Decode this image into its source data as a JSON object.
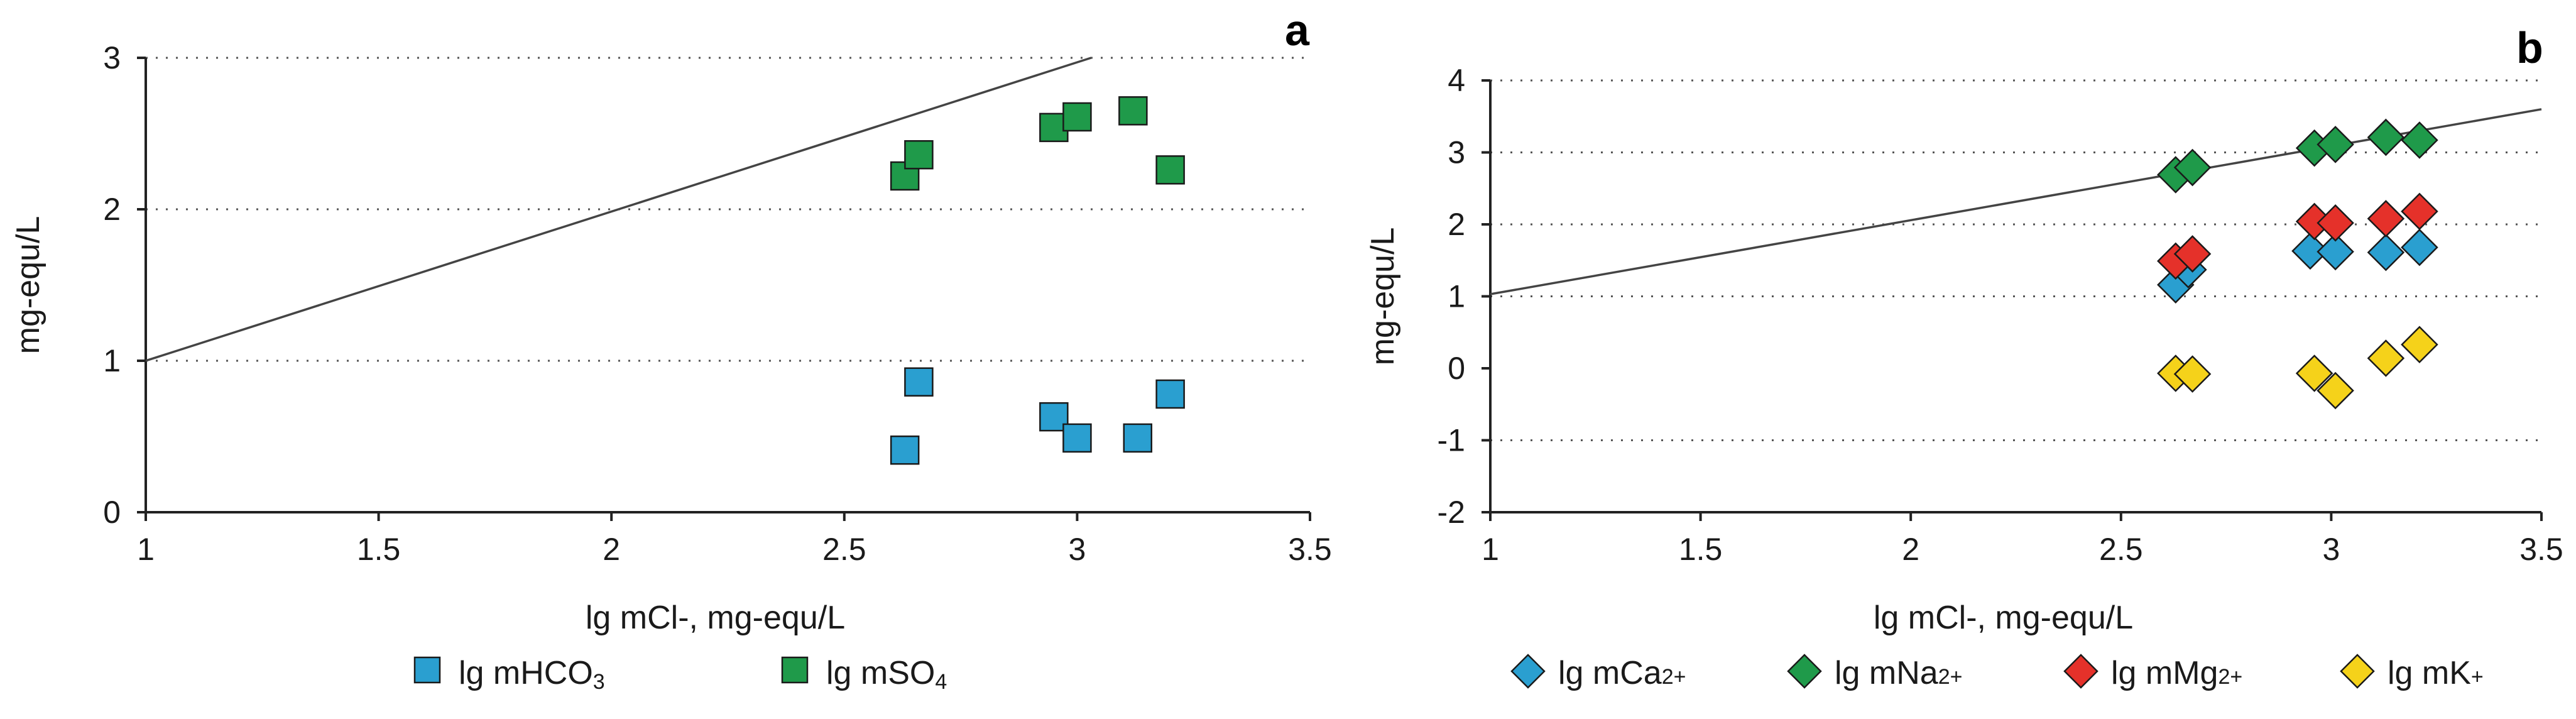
{
  "chart_data": [
    {
      "type": "scatter",
      "panel": "a",
      "xlabel": "lg mCl-, mg-equ/L",
      "ylabel": "mg-equ/L",
      "xlim": [
        1,
        3.5
      ],
      "ylim": [
        0,
        3
      ],
      "xticks": [
        1,
        1.5,
        2,
        2.5,
        3,
        3.5
      ],
      "yticks": [
        0,
        1,
        2,
        3
      ],
      "xtick_labels": [
        "1",
        "1.5",
        "2",
        "2.5",
        "3",
        "3.5"
      ],
      "ytick_labels": [
        "0",
        "1",
        "2",
        "3"
      ],
      "grid_y": [
        1,
        2,
        3
      ],
      "reference_line": {
        "x": [
          1,
          3.03
        ],
        "y": [
          1,
          3
        ]
      },
      "series": [
        {
          "name": "lg mHCO3",
          "label_base": "lg mHCO",
          "label_sub": "3",
          "marker": "square",
          "color": "#2a9fd0",
          "points": [
            [
              2.63,
              0.41
            ],
            [
              2.66,
              0.86
            ],
            [
              2.95,
              0.63
            ],
            [
              3.0,
              0.49
            ],
            [
              3.13,
              0.49
            ],
            [
              3.2,
              0.78
            ]
          ]
        },
        {
          "name": "lg mSO4",
          "label_base": "lg mSO",
          "label_sub": "4",
          "marker": "square",
          "color": "#1f9a4a",
          "points": [
            [
              2.63,
              2.22
            ],
            [
              2.66,
              2.36
            ],
            [
              2.95,
              2.54
            ],
            [
              3.0,
              2.61
            ],
            [
              3.12,
              2.65
            ],
            [
              3.2,
              2.26
            ]
          ]
        }
      ]
    },
    {
      "type": "scatter",
      "panel": "b",
      "xlabel": "lg mCl-, mg-equ/L",
      "ylabel": "mg-equ/L",
      "xlim": [
        1,
        3.5
      ],
      "ylim": [
        -2,
        4
      ],
      "xticks": [
        1,
        1.5,
        2,
        2.5,
        3,
        3.5
      ],
      "yticks": [
        -2,
        -1,
        0,
        1,
        2,
        3,
        4
      ],
      "xtick_labels": [
        "1",
        "1.5",
        "2",
        "2.5",
        "3",
        "3.5"
      ],
      "ytick_labels": [
        "-2",
        "-1",
        "0",
        "1",
        "2",
        "3",
        "4"
      ],
      "grid_y": [
        -1,
        1,
        2,
        3,
        4
      ],
      "reference_line": {
        "x": [
          1,
          3.5
        ],
        "y": [
          1.03,
          3.6
        ]
      },
      "series": [
        {
          "name": "lg mCa2+",
          "label_base": "lg mCa",
          "label_sup": "2+",
          "marker": "diamond",
          "color": "#2a9fd0",
          "points": [
            [
              2.63,
              1.16
            ],
            [
              2.66,
              1.37
            ],
            [
              2.95,
              1.63
            ],
            [
              3.01,
              1.62
            ],
            [
              3.13,
              1.61
            ],
            [
              3.21,
              1.68
            ]
          ]
        },
        {
          "name": "lg mNa2+",
          "label_base": "lg mNa",
          "label_sup": "2+",
          "marker": "diamond",
          "color": "#1f9a4a",
          "points": [
            [
              2.63,
              2.69
            ],
            [
              2.67,
              2.79
            ],
            [
              2.96,
              3.06
            ],
            [
              3.01,
              3.11
            ],
            [
              3.13,
              3.21
            ],
            [
              3.21,
              3.17
            ]
          ]
        },
        {
          "name": "lg mMg2+",
          "label_base": "lg mMg",
          "label_sup": "2+",
          "marker": "diamond",
          "color": "#e5312a",
          "points": [
            [
              2.63,
              1.49
            ],
            [
              2.67,
              1.59
            ],
            [
              2.96,
              2.04
            ],
            [
              3.01,
              2.02
            ],
            [
              3.13,
              2.08
            ],
            [
              3.21,
              2.18
            ]
          ]
        },
        {
          "name": "lg mK+",
          "label_base": "lg mK",
          "label_sup": "+",
          "marker": "diamond",
          "color": "#f5d21a",
          "points": [
            [
              2.63,
              -0.07
            ],
            [
              2.67,
              -0.08
            ],
            [
              2.96,
              -0.07
            ],
            [
              3.01,
              -0.31
            ],
            [
              3.13,
              0.14
            ],
            [
              3.21,
              0.33
            ]
          ]
        }
      ]
    }
  ]
}
